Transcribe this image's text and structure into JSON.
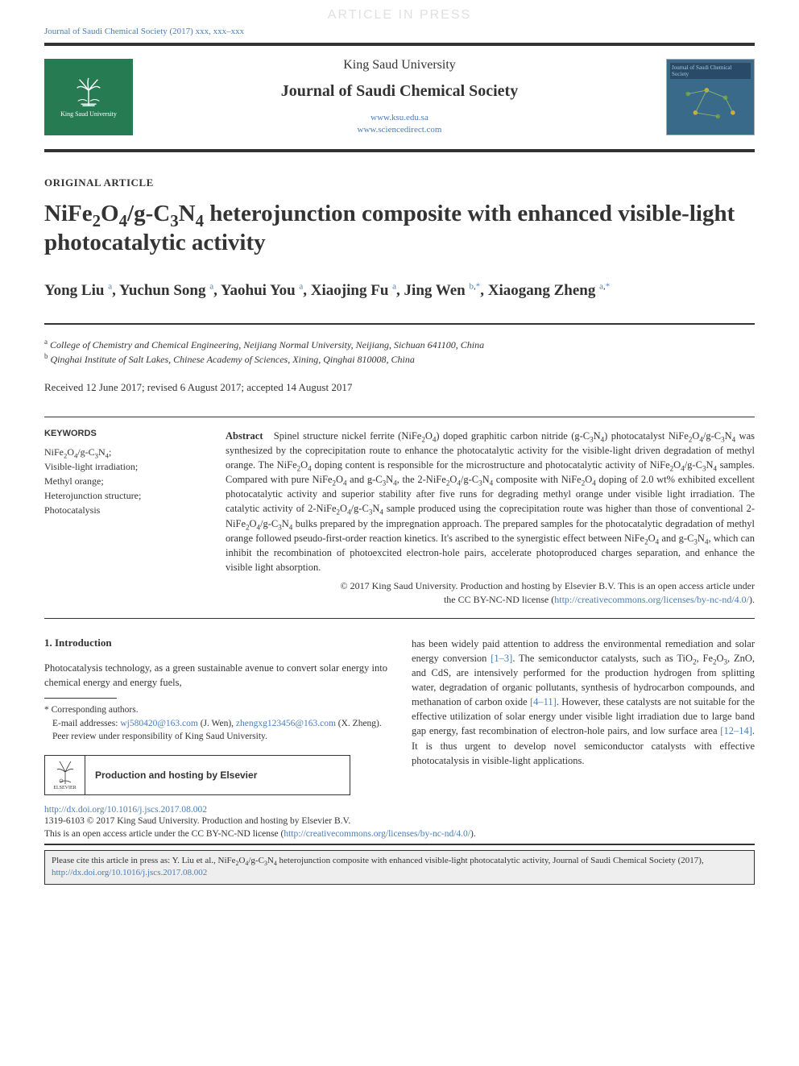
{
  "header": {
    "article_in_press": "ARTICLE IN PRESS",
    "citation_ref": "Journal of Saudi Chemical Society (2017) xxx, xxx–xxx",
    "logo_left_label": "King Saud University",
    "university": "King Saud University",
    "journal_title": "Journal of Saudi Chemical Society",
    "link1": "www.ksu.edu.sa",
    "link2": "www.sciencedirect.com",
    "cover_title": "Journal of Saudi Chemical Society"
  },
  "article": {
    "type": "ORIGINAL ARTICLE",
    "title_html": "NiFe<sub>2</sub>O<sub>4</sub>/g-C<sub>3</sub>N<sub>4</sub> heterojunction composite with enhanced visible-light photocatalytic activity",
    "authors": [
      {
        "name": "Yong Liu",
        "aff": "a"
      },
      {
        "name": "Yuchun Song",
        "aff": "a"
      },
      {
        "name": "Yaohui You",
        "aff": "a"
      },
      {
        "name": "Xiaojing Fu",
        "aff": "a"
      },
      {
        "name": "Jing Wen",
        "aff": "b",
        "corresponding": true
      },
      {
        "name": "Xiaogang Zheng",
        "aff": "a",
        "corresponding": true
      }
    ],
    "affiliations": [
      {
        "sup": "a",
        "text": "College of Chemistry and Chemical Engineering, Neijiang Normal University, Neijiang, Sichuan 641100, China"
      },
      {
        "sup": "b",
        "text": "Qinghai Institute of Salt Lakes, Chinese Academy of Sciences, Xining, Qinghai 810008, China"
      }
    ],
    "dates": "Received 12 June 2017; revised 6 August 2017; accepted 14 August 2017"
  },
  "keywords": {
    "heading": "KEYWORDS",
    "items": [
      "NiFe<sub>2</sub>O<sub>4</sub>/g-C<sub>3</sub>N<sub>4</sub>;",
      "Visible-light irradiation;",
      "Methyl orange;",
      "Heterojunction structure;",
      "Photocatalysis"
    ]
  },
  "abstract": {
    "label": "Abstract",
    "text_html": "Spinel structure nickel ferrite (NiFe<sub>2</sub>O<sub>4</sub>) doped graphitic carbon nitride (g-C<sub>3</sub>N<sub>4</sub>) photocatalyst NiFe<sub>2</sub>O<sub>4</sub>/g-C<sub>3</sub>N<sub>4</sub> was synthesized by the coprecipitation route to enhance the photocatalytic activity for the visible-light driven degradation of methyl orange. The NiFe<sub>2</sub>O<sub>4</sub> doping content is responsible for the microstructure and photocatalytic activity of NiFe<sub>2</sub>O<sub>4</sub>/g-C<sub>3</sub>N<sub>4</sub> samples. Compared with pure NiFe<sub>2</sub>O<sub>4</sub> and g-C<sub>3</sub>N<sub>4</sub>, the 2-NiFe<sub>2</sub>O<sub>4</sub>/g-C<sub>3</sub>N<sub>4</sub> composite with NiFe<sub>2</sub>O<sub>4</sub> doping of 2.0 wt% exhibited excellent photocatalytic activity and superior stability after five runs for degrading methyl orange under visible light irradiation. The catalytic activity of 2-NiFe<sub>2</sub>O<sub>4</sub>/g-C<sub>3</sub>N<sub>4</sub> sample produced using the coprecipitation route was higher than those of conventional 2-NiFe<sub>2</sub>O<sub>4</sub>/g-C<sub>3</sub>N<sub>4</sub> bulks prepared by the impregnation approach. The prepared samples for the photocatalytic degradation of methyl orange followed pseudo-first-order reaction kinetics. It's ascribed to the synergistic effect between NiFe<sub>2</sub>O<sub>4</sub> and g-C<sub>3</sub>N<sub>4</sub>, which can inhibit the recombination of photoexcited electron-hole pairs, accelerate photoproduced charges separation, and enhance the visible light absorption.",
    "copyright_line1": "© 2017 King Saud University. Production and hosting by Elsevier B.V. This is an open access article under",
    "copyright_line2_pre": "the CC BY-NC-ND license (",
    "copyright_link": "http://creativecommons.org/licenses/by-nc-nd/4.0/",
    "copyright_line2_post": ")."
  },
  "body": {
    "intro_heading": "1. Introduction",
    "col1_p1": "Photocatalysis technology, as a green sustainable avenue to convert solar energy into chemical energy and energy fuels,",
    "corresponding_label": "* Corresponding authors.",
    "email_label": "E-mail addresses: ",
    "email1": "wj580420@163.com",
    "email1_name": " (J. Wen), ",
    "email2": "zhengxg123456@163.com",
    "email2_name": " (X. Zheng).",
    "peer_review": "Peer review under responsibility of King Saud University.",
    "hosting_label": "Production and hosting by Elsevier",
    "elsevier_name": "ELSEVIER",
    "col2_html": "has been widely paid attention to address the environmental remediation and solar energy conversion <span class=\"link\">[1–3]</span>. The semiconductor catalysts, such as TiO<sub>2</sub>, Fe<sub>2</sub>O<sub>3</sub>, ZnO, and CdS, are intensively performed for the production hydrogen from splitting water, degradation of organic pollutants, synthesis of hydrocarbon compounds, and methanation of carbon oxide <span class=\"link\">[4–11]</span>. However, these catalysts are not suitable for the effective utilization of solar energy under visible light irradiation due to large band gap energy, fast recombination of electron-hole pairs, and low surface area <span class=\"link\">[12–14]</span>. It is thus urgent to develop novel semiconductor catalysts with effective photocatalysis in visible-light applications."
  },
  "footer": {
    "doi": "http://dx.doi.org/10.1016/j.jscs.2017.08.002",
    "issn_line": "1319-6103 © 2017 King Saud University. Production and hosting by Elsevier B.V.",
    "license_pre": "This is an open access article under the CC BY-NC-ND license (",
    "license_link": "http://creativecommons.org/licenses/by-nc-nd/4.0/",
    "license_post": ").",
    "citebox_html": "Please cite this article in press as: Y. Liu et al., NiFe<sub>2</sub>O<sub>4</sub>/g-C<sub>3</sub>N<sub>4</sub> heterojunction composite with enhanced visible-light photocatalytic activity, Journal of Saudi Chemical Society (2017), <span class=\"link\">http://dx.doi.org/10.1016/j.jscs.2017.08.002</span>"
  },
  "colors": {
    "link": "#4a7db8",
    "ksu_green": "#267b53",
    "cover_blue": "#3a6a8a",
    "text": "#333333",
    "citebox_bg": "#eeeeee"
  }
}
